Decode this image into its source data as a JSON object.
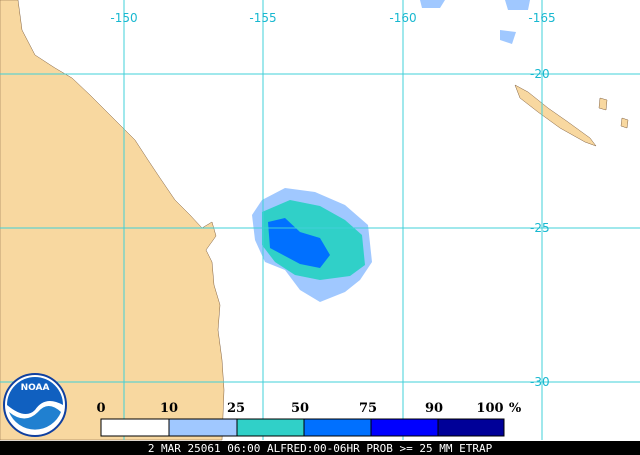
{
  "map": {
    "lon_labels": [
      "-150",
      "-155",
      "-160",
      "-165"
    ],
    "lat_labels": [
      "-20",
      "-25",
      "-30"
    ],
    "legend": {
      "labels": [
        "0",
        "10",
        "25",
        "50",
        "75",
        "90",
        "100"
      ],
      "unit": "%"
    },
    "logo": "NOAA",
    "caption": "2 MAR 25061 06:00 ALFRED:00-06HR PROB >= 25 MM ETRAP"
  }
}
